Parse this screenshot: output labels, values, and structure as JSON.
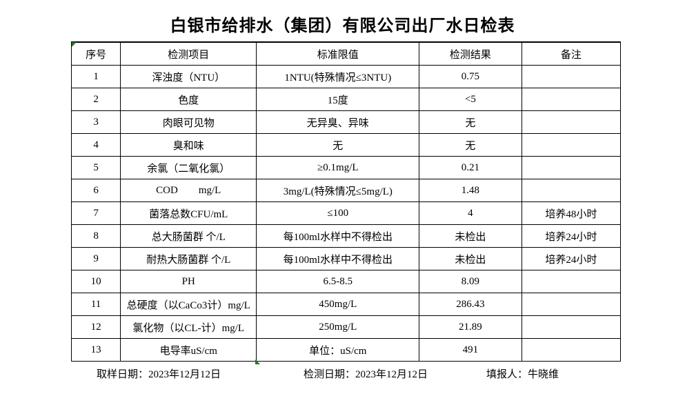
{
  "title": "白银市给排水（集团）有限公司出厂水日检表",
  "table": {
    "headers": [
      "序号",
      "检测项目",
      "标准限值",
      "检测结果",
      "备注"
    ],
    "rows": [
      [
        "1",
        "浑浊度（NTU）",
        "1NTU(特殊情况≤3NTU)",
        "0.75",
        ""
      ],
      [
        "2",
        "色度",
        "15度",
        "<5",
        ""
      ],
      [
        "3",
        "肉眼可见物",
        "无异臭、异味",
        "无",
        ""
      ],
      [
        "4",
        "臭和味",
        "无",
        "无",
        ""
      ],
      [
        "5",
        "余氯（二氧化氯）",
        "≥0.1mg/L",
        "0.21",
        ""
      ],
      [
        "6",
        "COD        mg/L",
        "3mg/L(特殊情况≤5mg/L)",
        "1.48",
        ""
      ],
      [
        "7",
        "菌落总数CFU/mL",
        "≤100",
        "4",
        "培养48小时"
      ],
      [
        "8",
        "总大肠菌群 个/L",
        "每100ml水样中不得检出",
        "未检出",
        "培养24小时"
      ],
      [
        "9",
        "耐热大肠菌群 个/L",
        "每100ml水样中不得检出",
        "未检出",
        "培养24小时"
      ],
      [
        "10",
        "PH",
        "6.5-8.5",
        "8.09",
        ""
      ],
      [
        "11",
        "总硬度（以CaCo3计）mg/L",
        "450mg/L",
        "286.43",
        ""
      ],
      [
        "12",
        "氯化物（以CL-计）mg/L",
        "250mg/L",
        "21.89",
        ""
      ],
      [
        "13",
        "电导率uS/cm",
        "单位：uS/cm",
        "491",
        ""
      ]
    ]
  },
  "footer": {
    "sampling_date": "取样日期：2023年12月12日",
    "test_date": "检测日期：2023年12月12日",
    "reporter": "填报人：牛晓维"
  },
  "colors": {
    "border": "#000000",
    "marker_green": "#1e7b1e",
    "background": "#ffffff"
  }
}
